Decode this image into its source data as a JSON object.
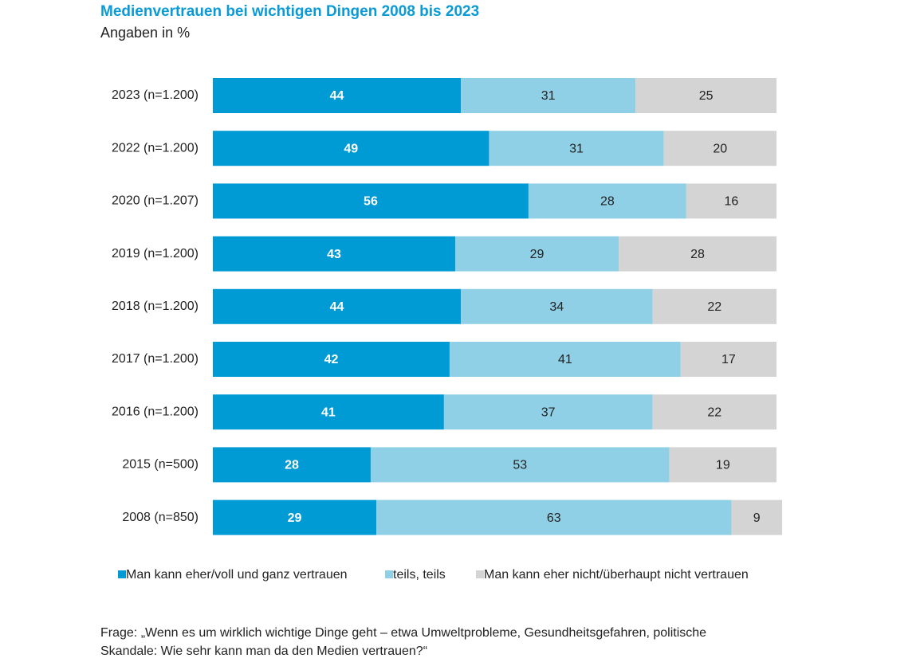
{
  "chart_data": {
    "type": "stacked-barh",
    "title": "Medienvertrauen bei wichtigen Dingen 2008 bis 2023",
    "subtitle": "Angaben in %",
    "categories": [
      "2023 (n=1.200)",
      "2022 (n=1.200)",
      "2020 (n=1.207)",
      "2019 (n=1.200)",
      "2018 (n=1.200)",
      "2017 (n=1.200)",
      "2016 (n=1.200)",
      "2015 (n=500)",
      "2008 (n=850)"
    ],
    "series": [
      {
        "name": "Man kann eher/voll und ganz vertrauen",
        "color": "#009ad4",
        "label_color": "#ffffff",
        "values": [
          44,
          49,
          56,
          43,
          44,
          42,
          41,
          28,
          29
        ]
      },
      {
        "name": "teils, teils",
        "color": "#90d0e6",
        "label_color": "#222222",
        "values": [
          31,
          31,
          28,
          29,
          34,
          41,
          37,
          53,
          63
        ]
      },
      {
        "name": "Man kann eher nicht/überhaupt nicht vertrauen",
        "color": "#d4d4d4",
        "label_color": "#222222",
        "values": [
          25,
          20,
          16,
          28,
          22,
          17,
          22,
          19,
          9
        ]
      }
    ],
    "xlim": [
      0,
      100
    ],
    "note": [
      "Frage: „Wenn es um wirklich wichtige Dinge geht – etwa Umweltprobleme, Gesundheitsgefahren, politische",
      "Skandale: Wie sehr kann man da den Medien vertrauen?“"
    ]
  }
}
